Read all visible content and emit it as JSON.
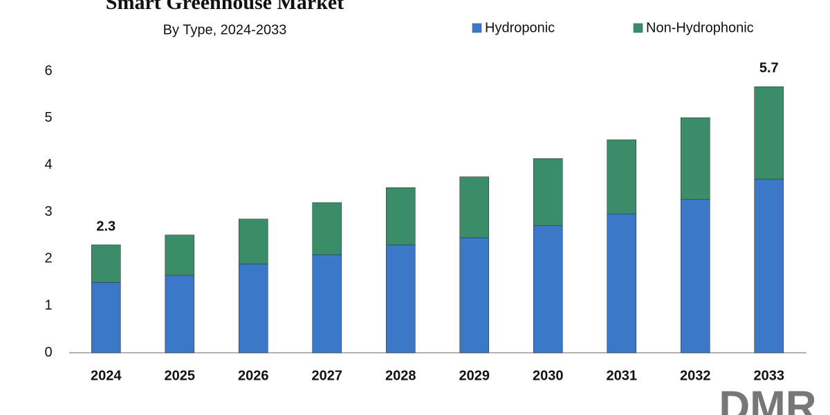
{
  "chart_data": {
    "type": "stacked_bar",
    "title": "Smart Greenhouse Market",
    "subtitle": "By Type, 2024-2033",
    "categories": [
      "2024",
      "2025",
      "2026",
      "2027",
      "2028",
      "2029",
      "2030",
      "2031",
      "2032",
      "2033"
    ],
    "series": [
      {
        "name": "Hydroponic",
        "color": "#3b78c8",
        "values": [
          1.5,
          1.65,
          1.89,
          2.09,
          2.3,
          2.45,
          2.71,
          2.96,
          3.27,
          3.7
        ]
      },
      {
        "name": "Non-Hydrophonic",
        "color": "#3b8c68",
        "values": [
          0.8,
          0.86,
          0.96,
          1.11,
          1.22,
          1.3,
          1.43,
          1.58,
          1.74,
          1.97
        ]
      }
    ],
    "annotations": [
      {
        "x": "2024",
        "text": "2.3"
      },
      {
        "x": "2033",
        "text": "5.7"
      }
    ],
    "ylim": [
      0,
      6
    ],
    "yticks": [
      0,
      1,
      2,
      3,
      4,
      5,
      6
    ],
    "grid": false,
    "legend": "top-right",
    "logo": "DMR"
  }
}
